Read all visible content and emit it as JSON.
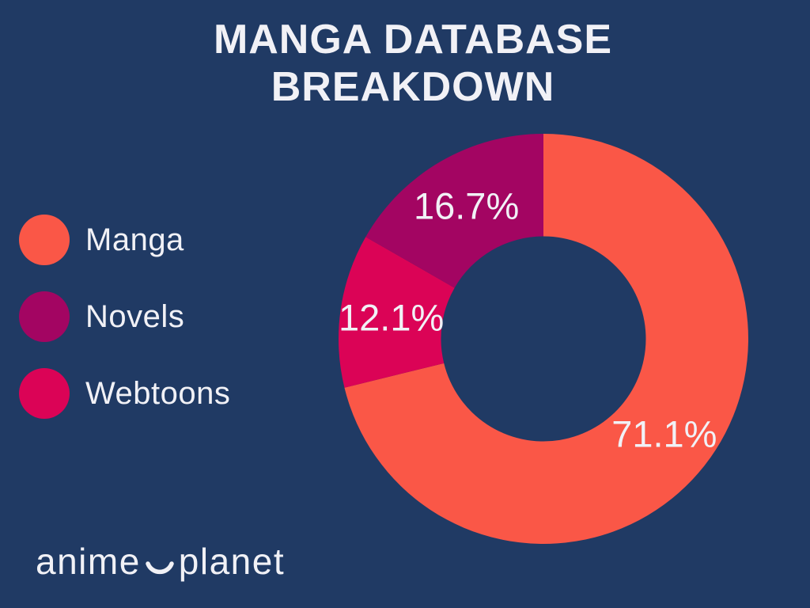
{
  "page": {
    "background_color": "#203A64",
    "text_color": "#F1F1F6"
  },
  "title": {
    "line1": "MANGA DATABASE",
    "line2": "BREAKDOWN"
  },
  "legend": {
    "items": [
      {
        "label": "Manga",
        "color": "#FA5747"
      },
      {
        "label": "Novels",
        "color": "#A30562"
      },
      {
        "label": "Webtoons",
        "color": "#DB0356"
      }
    ]
  },
  "logo": {
    "part1": "anime",
    "part2": "planet",
    "icon": "smile-arc-icon"
  },
  "chart_data": {
    "type": "pie",
    "subtype": "donut",
    "title": "MANGA DATABASE BREAKDOWN",
    "categories": [
      "Manga",
      "Novels",
      "Webtoons"
    ],
    "values": [
      71.1,
      16.7,
      12.1
    ],
    "labels": [
      "71.1%",
      "16.7%",
      "12.1%"
    ],
    "colors": [
      "#FA5747",
      "#A30562",
      "#DB0356"
    ],
    "values_unit": "%",
    "hole_ratio": 0.5,
    "start_angle_deg": 0,
    "direction": "clockwise",
    "draw_order": [
      "Manga",
      "Webtoons",
      "Novels"
    ],
    "legend_position": "left",
    "label_color": "#F1F1F6",
    "background_color": "#203A64"
  }
}
